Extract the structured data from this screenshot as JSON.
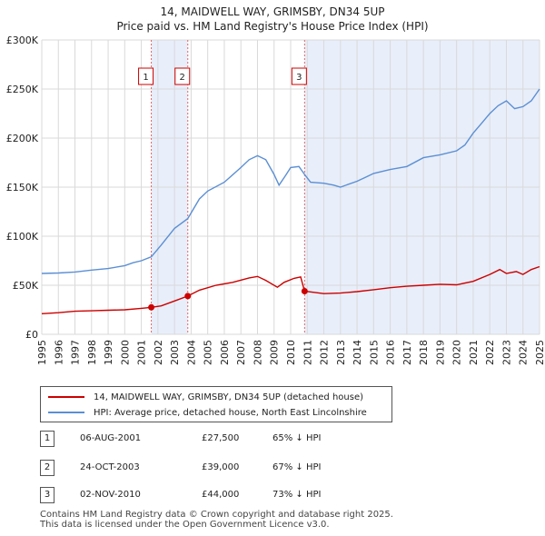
{
  "title": "14, MAIDWELL WAY, GRIMSBY, DN34 5UP",
  "subtitle": "Price paid vs. HM Land Registry's House Price Index (HPI)",
  "chart_data": {
    "type": "line",
    "title": "14, MAIDWELL WAY, GRIMSBY, DN34 5UP",
    "xlabel": "",
    "ylabel": "",
    "xlim": [
      1995,
      2025
    ],
    "ylim": [
      0,
      300000
    ],
    "grid": true,
    "y_ticks": [
      0,
      50000,
      100000,
      150000,
      200000,
      250000,
      300000
    ],
    "y_tick_labels": [
      "£0",
      "£50K",
      "£100K",
      "£150K",
      "£200K",
      "£250K",
      "£300K"
    ],
    "x_ticks": [
      1995,
      1996,
      1997,
      1998,
      1999,
      2000,
      2001,
      2002,
      2003,
      2004,
      2005,
      2006,
      2007,
      2008,
      2009,
      2010,
      2011,
      2012,
      2013,
      2014,
      2015,
      2016,
      2017,
      2018,
      2019,
      2020,
      2021,
      2022,
      2023,
      2024,
      2025
    ],
    "series": [
      {
        "name": "14, MAIDWELL WAY, GRIMSBY, DN34 5UP (detached house)",
        "color": "#cc0000",
        "x": [
          1995.0,
          1996.0,
          1997.0,
          1998.0,
          1999.0,
          2000.0,
          2001.0,
          2001.6,
          2002.2,
          2003.0,
          2003.8,
          2004.5,
          2005.5,
          2006.5,
          2007.5,
          2008.0,
          2008.5,
          2009.2,
          2009.6,
          2010.2,
          2010.6,
          2010.84,
          2011.3,
          2012.0,
          2013.0,
          2014.0,
          2015.0,
          2016.0,
          2017.0,
          2018.0,
          2019.0,
          2020.0,
          2021.0,
          2022.0,
          2022.6,
          2023.0,
          2023.6,
          2024.0,
          2024.5,
          2025.0
        ],
        "y": [
          21000,
          22000,
          23500,
          24000,
          24500,
          25000,
          26500,
          27500,
          29000,
          34000,
          39000,
          45000,
          50000,
          53000,
          57500,
          59000,
          55000,
          48000,
          53000,
          57000,
          58500,
          44000,
          43000,
          41500,
          42000,
          43500,
          45500,
          47500,
          49000,
          50000,
          51000,
          50500,
          54000,
          61000,
          66000,
          62000,
          64000,
          61000,
          66000,
          69000
        ]
      },
      {
        "name": "HPI: Average price, detached house, North East Lincolnshire",
        "color": "#5b8fd4",
        "x": [
          1995.0,
          1996.0,
          1997.0,
          1998.0,
          1999.0,
          2000.0,
          2000.5,
          2001.0,
          2001.6,
          2002.2,
          2003.0,
          2003.8,
          2004.5,
          2005.0,
          2006.0,
          2007.0,
          2007.5,
          2008.0,
          2008.5,
          2009.0,
          2009.3,
          2009.7,
          2010.0,
          2010.5,
          2010.84,
          2011.2,
          2012.0,
          2012.6,
          2013.0,
          2014.0,
          2014.5,
          2015.0,
          2016.0,
          2017.0,
          2018.0,
          2019.0,
          2020.0,
          2020.5,
          2021.0,
          2021.5,
          2022.0,
          2022.5,
          2023.0,
          2023.5,
          2024.0,
          2024.5,
          2025.0
        ],
        "y": [
          62000,
          62500,
          63500,
          65500,
          67000,
          70000,
          73000,
          75000,
          79000,
          91000,
          108000,
          118000,
          138000,
          146000,
          155000,
          170000,
          178000,
          182000,
          178000,
          163000,
          152000,
          162000,
          170000,
          171000,
          163000,
          155000,
          154000,
          152000,
          150000,
          156000,
          160000,
          164000,
          168000,
          171000,
          180000,
          183000,
          187000,
          193000,
          205000,
          215000,
          225000,
          233000,
          238000,
          230000,
          232000,
          238000,
          250000
        ]
      }
    ],
    "sales": [
      {
        "label": "1",
        "date": "06-AUG-2001",
        "x": 2001.6,
        "price": 27500
      },
      {
        "label": "2",
        "date": "24-OCT-2003",
        "x": 2003.8,
        "price": 39000
      },
      {
        "label": "3",
        "date": "02-NOV-2010",
        "x": 2010.84,
        "price": 44000
      }
    ]
  },
  "legend": {
    "property_label": "14, MAIDWELL WAY, GRIMSBY, DN34 5UP (detached house)",
    "hpi_label": "HPI: Average price, detached house, North East Lincolnshire"
  },
  "transactions": [
    {
      "num": "1",
      "date": "06-AUG-2001",
      "price": "£27,500",
      "hpi": "65% ↓ HPI"
    },
    {
      "num": "2",
      "date": "24-OCT-2003",
      "price": "£39,000",
      "hpi": "67% ↓ HPI"
    },
    {
      "num": "3",
      "date": "02-NOV-2010",
      "price": "£44,000",
      "hpi": "73% ↓ HPI"
    }
  ],
  "footer": {
    "line1": "Contains HM Land Registry data © Crown copyright and database right 2025.",
    "line2": "This data is licensed under the Open Government Licence v3.0."
  }
}
